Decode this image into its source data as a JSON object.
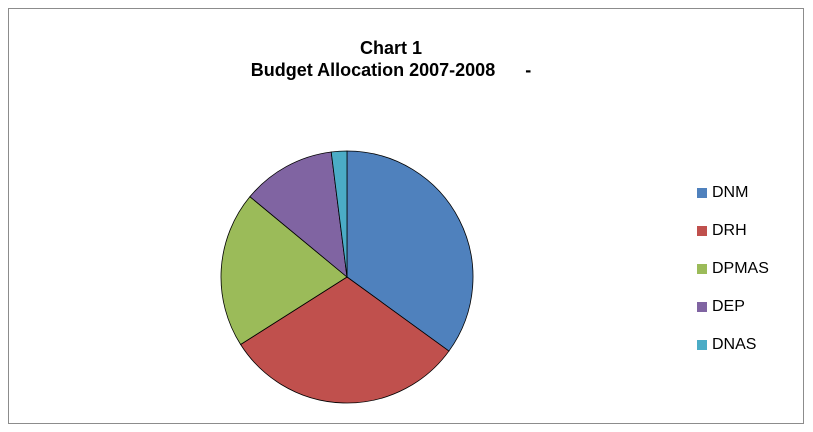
{
  "chart_data": {
    "type": "pie",
    "title": "Chart 1",
    "subtitle": "Budget Allocation 2007-2008      -",
    "categories": [
      "DNM",
      "DRH",
      "DPMAS",
      "DEP",
      "DNAS"
    ],
    "values": [
      35,
      31,
      20,
      12,
      2
    ],
    "colors": [
      "#4f81bd",
      "#c0504d",
      "#9bbb59",
      "#8064a2",
      "#4bacc6"
    ],
    "legend_position": "right",
    "start_angle_deg": 0,
    "direction": "clockwise"
  }
}
